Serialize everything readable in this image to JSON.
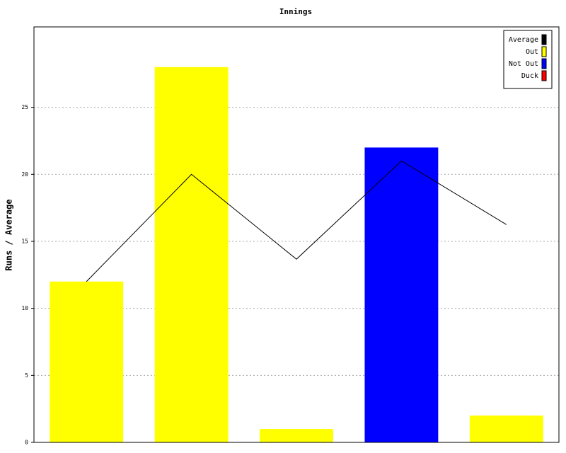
{
  "chart_data": {
    "type": "bar",
    "title": "Innings",
    "y_label": "Runs / Average",
    "categories": [
      null,
      null,
      null,
      null,
      null
    ],
    "series": [
      {
        "name": "Average",
        "type": "line",
        "color": "#000000",
        "values": [
          12,
          20,
          13.67,
          21,
          16.25
        ]
      },
      {
        "name": "Out",
        "type": "bar",
        "color": "#ffff00",
        "values": [
          12,
          28,
          1,
          null,
          2
        ]
      },
      {
        "name": "Not Out",
        "type": "bar",
        "color": "#0000ff",
        "values": [
          null,
          null,
          null,
          22,
          null
        ]
      },
      {
        "name": "Duck",
        "type": "bar",
        "color": "#ff0000",
        "values": [
          null,
          null,
          null,
          null,
          null
        ]
      }
    ],
    "ylim": [
      0,
      31
    ],
    "yticks": [
      0,
      5,
      10,
      15,
      20,
      25
    ],
    "grid": true,
    "legend": "upper right"
  }
}
